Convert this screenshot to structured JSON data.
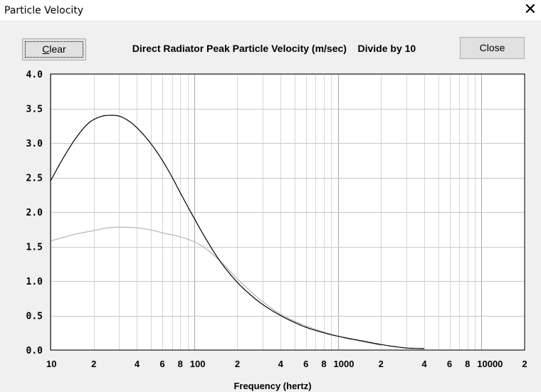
{
  "window": {
    "title": "Particle Velocity",
    "close_glyph": "✕"
  },
  "toolbar": {
    "clear_label": "Clear",
    "clear_mnemonic": "C",
    "clear_rest": "lear",
    "close_label": "Close"
  },
  "header": {
    "title": "Direct Radiator Peak Particle Velocity (m/sec)    Divide by 10"
  },
  "chart_data": {
    "type": "line",
    "title": "Direct Radiator Peak Particle Velocity (m/sec)    Divide by 10",
    "xlabel": "Frequency (hertz)",
    "ylabel": "",
    "x_scale": "log",
    "xlim": [
      10,
      20000
    ],
    "ylim": [
      0,
      4.0
    ],
    "grid": true,
    "y_ticks": [
      "0.0",
      "0.5",
      "1.0",
      "1.5",
      "2.0",
      "2.5",
      "3.0",
      "3.5",
      "4.0"
    ],
    "x_ticks": [
      {
        "x": 10,
        "label": "10"
      },
      {
        "x": 20,
        "label": "2"
      },
      {
        "x": 40,
        "label": "4"
      },
      {
        "x": 60,
        "label": "6"
      },
      {
        "x": 80,
        "label": "8"
      },
      {
        "x": 100,
        "label": "100"
      },
      {
        "x": 200,
        "label": "2"
      },
      {
        "x": 400,
        "label": "4"
      },
      {
        "x": 600,
        "label": "6"
      },
      {
        "x": 800,
        "label": "8"
      },
      {
        "x": 1000,
        "label": "1000"
      },
      {
        "x": 2000,
        "label": "2"
      },
      {
        "x": 4000,
        "label": "4"
      },
      {
        "x": 6000,
        "label": "6"
      },
      {
        "x": 8000,
        "label": "8"
      },
      {
        "x": 10000,
        "label": "10000"
      },
      {
        "x": 20000,
        "label": "2"
      }
    ],
    "series": [
      {
        "color": "#000000",
        "x": [
          10,
          12,
          15,
          18,
          20,
          25,
          30,
          35,
          40,
          50,
          60,
          70,
          80,
          100,
          120,
          150,
          200,
          250,
          300,
          400,
          500,
          600,
          800,
          1000,
          1500,
          2000,
          3000,
          4000
        ],
        "y": [
          2.45,
          2.75,
          3.07,
          3.27,
          3.34,
          3.4,
          3.39,
          3.32,
          3.22,
          2.99,
          2.75,
          2.51,
          2.28,
          1.91,
          1.62,
          1.3,
          0.98,
          0.79,
          0.66,
          0.5,
          0.4,
          0.33,
          0.25,
          0.2,
          0.13,
          0.08,
          0.03,
          0.02
        ]
      },
      {
        "color": "#b4b4b4",
        "x": [
          10,
          15,
          20,
          25,
          30,
          40,
          50,
          60,
          80,
          100,
          120,
          150,
          200,
          250,
          300,
          400,
          500,
          600,
          800,
          1000,
          1500,
          2000
        ],
        "y": [
          1.58,
          1.68,
          1.73,
          1.77,
          1.78,
          1.77,
          1.74,
          1.7,
          1.64,
          1.57,
          1.47,
          1.3,
          1.03,
          0.84,
          0.7,
          0.52,
          0.42,
          0.35,
          0.26,
          0.2,
          0.12,
          0.07
        ]
      }
    ]
  }
}
